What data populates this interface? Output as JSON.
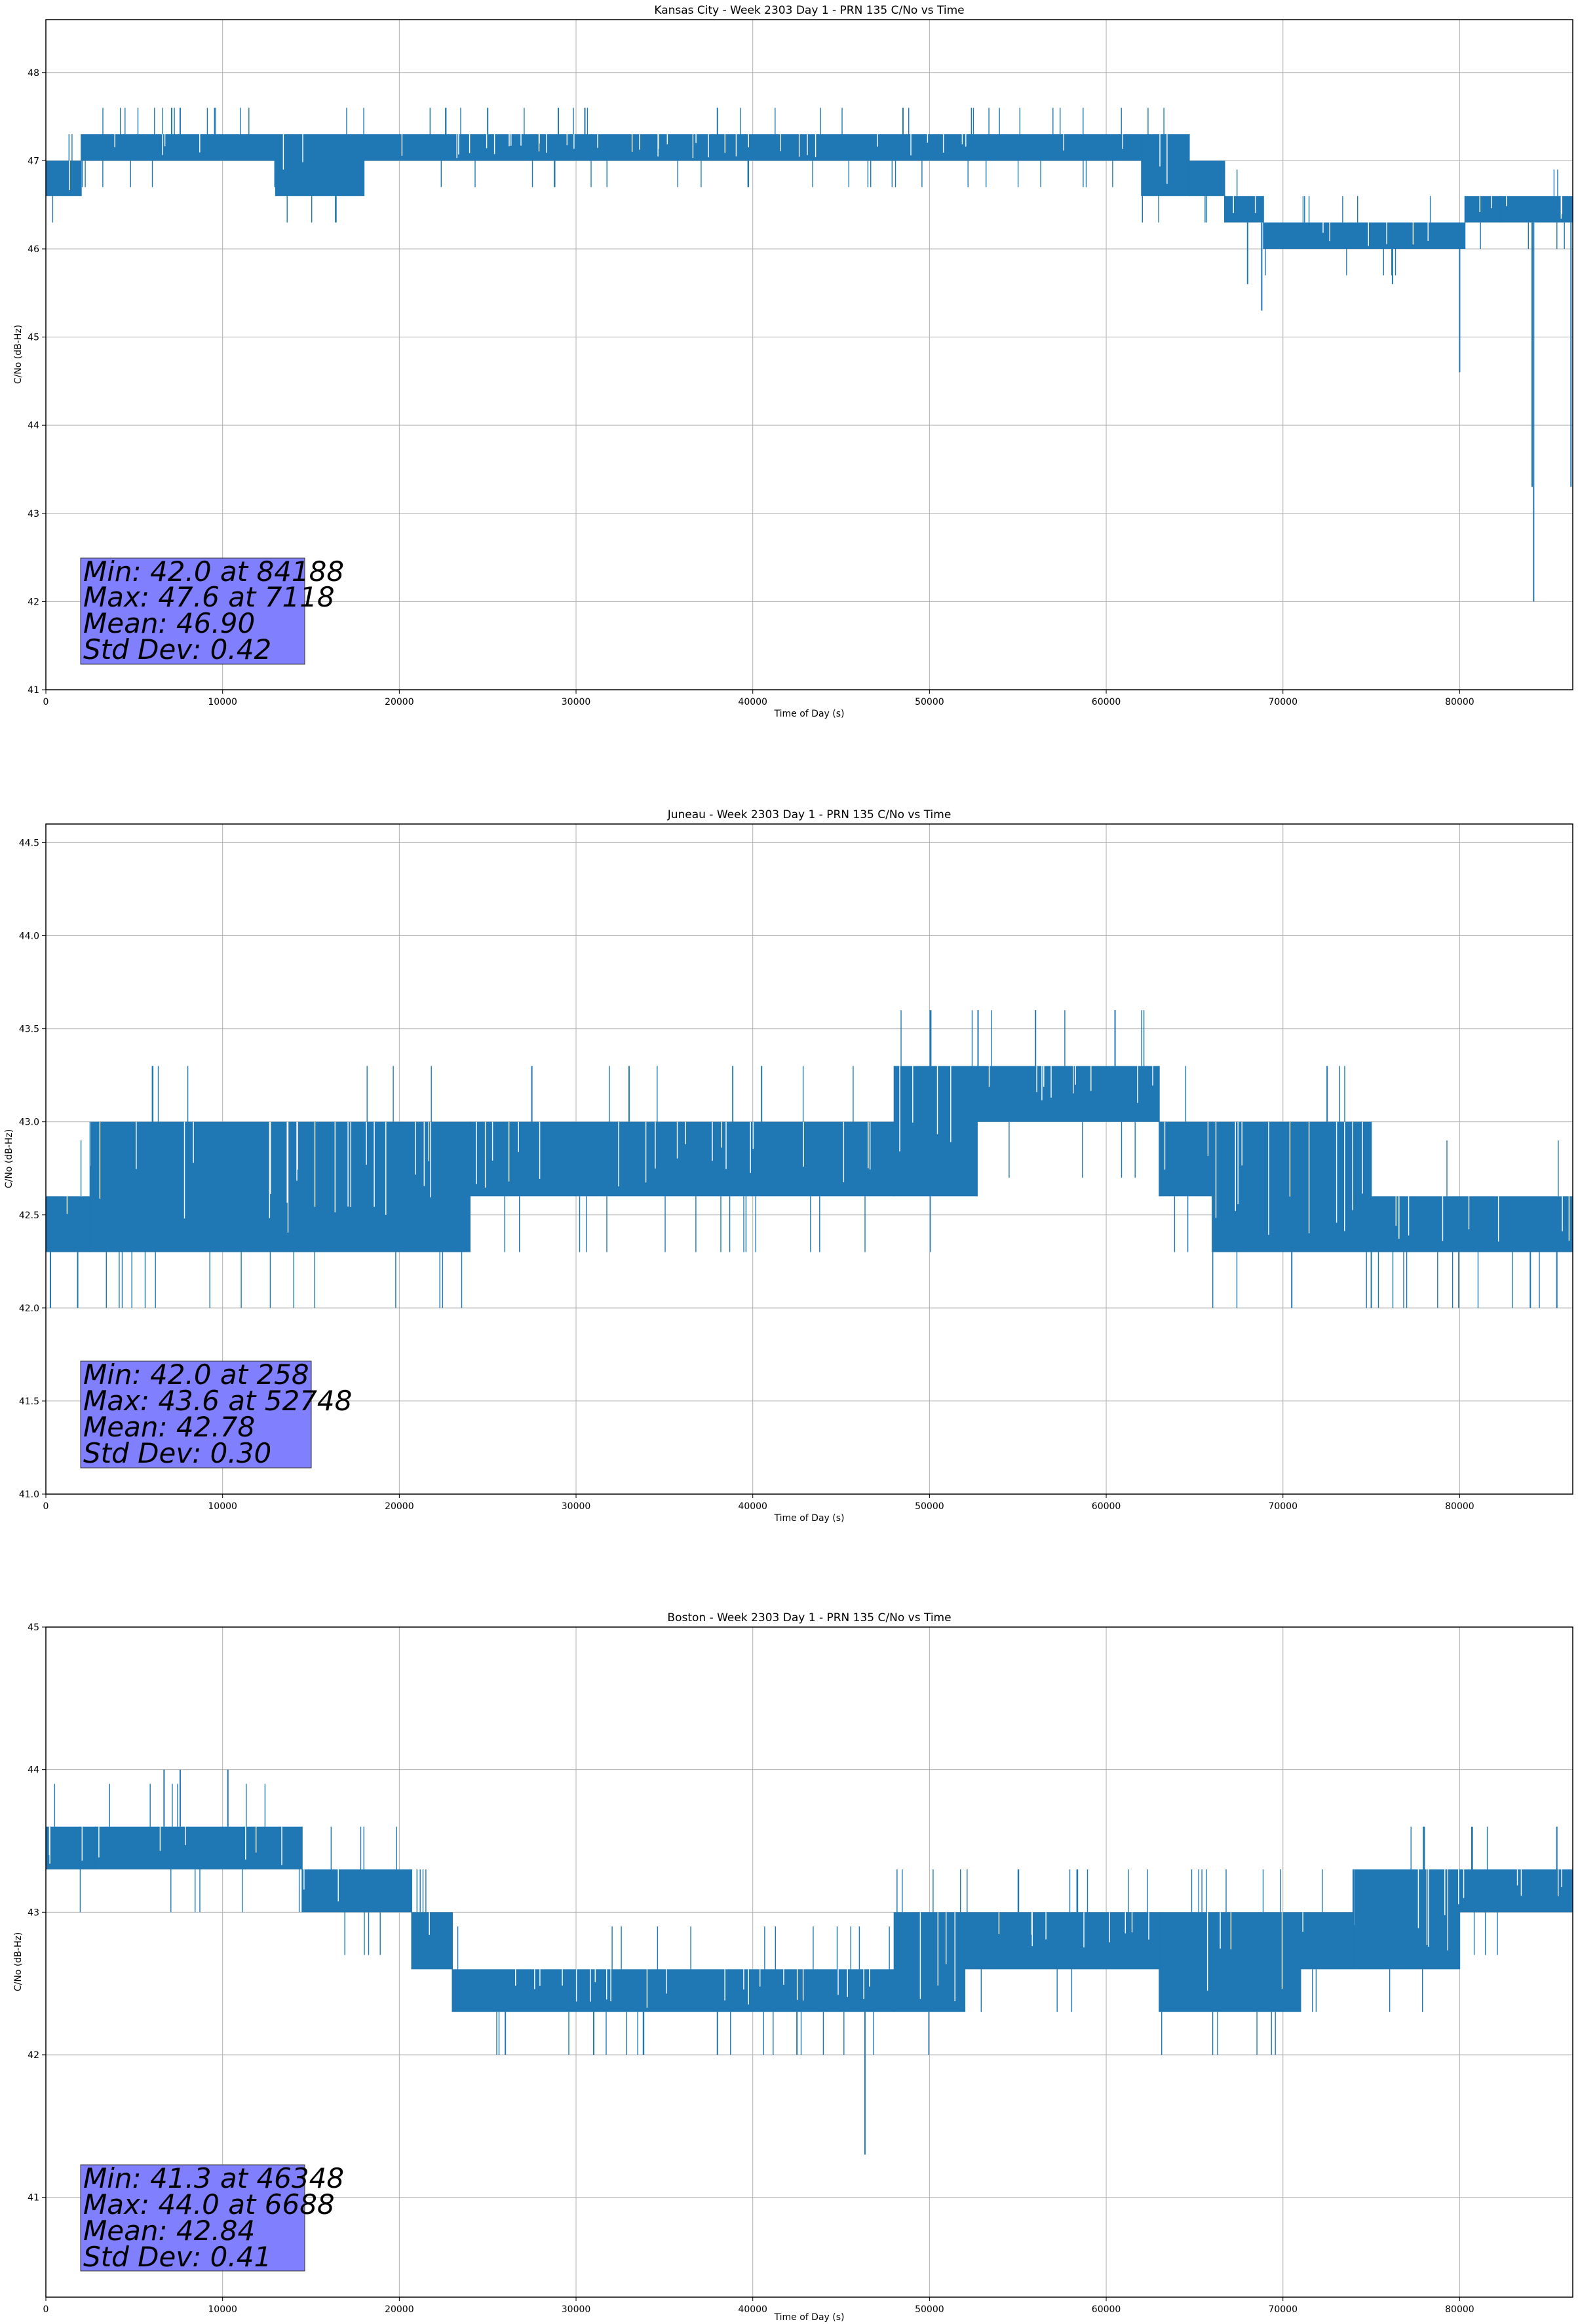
{
  "chart_data": [
    {
      "type": "line",
      "title": "Kansas City - Week 2303 Day 1 - PRN 135 C/No vs Time",
      "xlabel": "Time of Day (s)",
      "ylabel": "C/No (dB-Hz)",
      "xlim": [
        0,
        86400
      ],
      "ylim": [
        41,
        48.6
      ],
      "xticks": [
        0,
        10000,
        20000,
        30000,
        40000,
        50000,
        60000,
        70000,
        80000
      ],
      "xtick_labels": [
        "0",
        "10000",
        "20000",
        "30000",
        "40000",
        "50000",
        "60000",
        "70000",
        "80000"
      ],
      "yticks": [
        41,
        42,
        43,
        44,
        45,
        46,
        47,
        48
      ],
      "ytick_labels": [
        "41",
        "42",
        "43",
        "44",
        "45",
        "46",
        "47",
        "48"
      ],
      "grid": true,
      "color": "#1f77b4",
      "bands": [
        {
          "x": [
            0,
            2000
          ],
          "low": 46.6,
          "high": 47.0
        },
        {
          "x": [
            2000,
            13000
          ],
          "low": 47.0,
          "high": 47.3
        },
        {
          "x": [
            13000,
            18000
          ],
          "low": 46.6,
          "high": 47.3
        },
        {
          "x": [
            18000,
            62000
          ],
          "low": 47.0,
          "high": 47.3
        },
        {
          "x": [
            62000,
            64700
          ],
          "low": 46.6,
          "high": 47.3
        },
        {
          "x": [
            64700,
            66700
          ],
          "low": 46.6,
          "high": 47.0
        },
        {
          "x": [
            66700,
            68900
          ],
          "low": 46.3,
          "high": 46.6
        },
        {
          "x": [
            68900,
            80300
          ],
          "low": 46.0,
          "high": 46.3
        },
        {
          "x": [
            80300,
            82300
          ],
          "low": 46.3,
          "high": 46.6
        },
        {
          "x": [
            82300,
            86400
          ],
          "low": 46.3,
          "high": 46.6
        }
      ],
      "spikes": [
        {
          "x": 7118,
          "value": 47.6
        },
        {
          "x": 7600,
          "value": 47.6
        },
        {
          "x": 25000,
          "value": 47.6
        },
        {
          "x": 29000,
          "value": 47.6
        },
        {
          "x": 30500,
          "value": 47.6
        },
        {
          "x": 38000,
          "value": 47.6
        },
        {
          "x": 48500,
          "value": 47.6
        },
        {
          "x": 68000,
          "value": 45.6
        },
        {
          "x": 68800,
          "value": 45.3
        },
        {
          "x": 76200,
          "value": 45.6
        },
        {
          "x": 80000,
          "value": 44.6
        },
        {
          "x": 84100,
          "value": 43.3
        },
        {
          "x": 84188,
          "value": 42.0
        },
        {
          "x": 86300,
          "value": 43.3
        }
      ],
      "stats": {
        "min": "Min: 42.0 at 84188",
        "max": "Max: 47.6 at 7118",
        "mean": "Mean: 46.90",
        "std": "Std Dev: 0.42"
      }
    },
    {
      "type": "line",
      "title": "Juneau - Week 2303 Day 1 - PRN 135 C/No vs Time",
      "xlabel": "Time of Day (s)",
      "ylabel": "C/No (dB-Hz)",
      "xlim": [
        0,
        86400
      ],
      "ylim": [
        41.0,
        44.6
      ],
      "xticks": [
        0,
        10000,
        20000,
        30000,
        40000,
        50000,
        60000,
        70000,
        80000
      ],
      "xtick_labels": [
        "0",
        "10000",
        "20000",
        "30000",
        "40000",
        "50000",
        "60000",
        "70000",
        "80000"
      ],
      "yticks": [
        41.0,
        41.5,
        42.0,
        42.5,
        43.0,
        43.5,
        44.0,
        44.5
      ],
      "ytick_labels": [
        "41.0",
        "41.5",
        "42.0",
        "42.5",
        "43.0",
        "43.5",
        "44.0",
        "44.5"
      ],
      "grid": true,
      "color": "#1f77b4",
      "bands": [
        {
          "x": [
            0,
            2500
          ],
          "low": 42.3,
          "high": 42.6
        },
        {
          "x": [
            2500,
            24000
          ],
          "low": 42.3,
          "high": 43.0
        },
        {
          "x": [
            24000,
            48000
          ],
          "low": 42.6,
          "high": 43.0
        },
        {
          "x": [
            48000,
            52700
          ],
          "low": 42.6,
          "high": 43.3
        },
        {
          "x": [
            52700,
            63000
          ],
          "low": 43.0,
          "high": 43.3
        },
        {
          "x": [
            63000,
            66000
          ],
          "low": 42.6,
          "high": 43.0
        },
        {
          "x": [
            66000,
            75000
          ],
          "low": 42.3,
          "high": 43.0
        },
        {
          "x": [
            75000,
            86400
          ],
          "low": 42.3,
          "high": 42.6
        }
      ],
      "spikes": [
        {
          "x": 258,
          "value": 42.0
        },
        {
          "x": 1800,
          "value": 42.0
        },
        {
          "x": 27500,
          "value": 43.3
        },
        {
          "x": 33000,
          "value": 43.3
        },
        {
          "x": 40500,
          "value": 43.3
        },
        {
          "x": 52748,
          "value": 43.6
        },
        {
          "x": 56000,
          "value": 43.6
        },
        {
          "x": 60500,
          "value": 43.6
        },
        {
          "x": 70500,
          "value": 42.0
        },
        {
          "x": 72500,
          "value": 43.3
        },
        {
          "x": 75000,
          "value": 42.0
        },
        {
          "x": 84000,
          "value": 42.0
        },
        {
          "x": 85500,
          "value": 42.0
        }
      ],
      "stats": {
        "min": "Min: 42.0 at 258",
        "max": "Max: 43.6 at 52748",
        "mean": "Mean: 42.78",
        "std": "Std Dev: 0.30"
      }
    },
    {
      "type": "line",
      "title": "Boston - Week 2303 Day 1 - PRN 135 C/No vs Time",
      "xlabel": "Time of Day (s)",
      "ylabel": "C/No (dB-Hz)",
      "xlim": [
        0,
        86400
      ],
      "ylim": [
        40.3,
        45.0
      ],
      "xticks": [
        0,
        10000,
        20000,
        30000,
        40000,
        50000,
        60000,
        70000,
        80000
      ],
      "xtick_labels": [
        "0",
        "10000",
        "20000",
        "30000",
        "40000",
        "50000",
        "60000",
        "70000",
        "80000"
      ],
      "yticks": [
        41,
        42,
        43,
        44,
        45
      ],
      "ytick_labels": [
        "41",
        "42",
        "43",
        "44",
        "45"
      ],
      "grid": true,
      "color": "#1f77b4",
      "bands": [
        {
          "x": [
            0,
            2800
          ],
          "low": 43.3,
          "high": 43.6
        },
        {
          "x": [
            2800,
            14500
          ],
          "low": 43.3,
          "high": 43.6
        },
        {
          "x": [
            14500,
            20700
          ],
          "low": 43.0,
          "high": 43.3
        },
        {
          "x": [
            20700,
            23000
          ],
          "low": 42.6,
          "high": 43.0
        },
        {
          "x": [
            23000,
            48000
          ],
          "low": 42.3,
          "high": 42.6
        },
        {
          "x": [
            48000,
            52000
          ],
          "low": 42.3,
          "high": 43.0
        },
        {
          "x": [
            52000,
            63000
          ],
          "low": 42.6,
          "high": 43.0
        },
        {
          "x": [
            63000,
            71000
          ],
          "low": 42.3,
          "high": 43.0
        },
        {
          "x": [
            71000,
            74000
          ],
          "low": 42.6,
          "high": 43.0
        },
        {
          "x": [
            74000,
            80000
          ],
          "low": 42.6,
          "high": 43.3
        },
        {
          "x": [
            80000,
            86400
          ],
          "low": 43.0,
          "high": 43.3
        }
      ],
      "spikes": [
        {
          "x": 6688,
          "value": 44.0
        },
        {
          "x": 7600,
          "value": 44.0
        },
        {
          "x": 10300,
          "value": 44.0
        },
        {
          "x": 26000,
          "value": 42.0
        },
        {
          "x": 31000,
          "value": 42.0
        },
        {
          "x": 38000,
          "value": 42.0
        },
        {
          "x": 42500,
          "value": 42.0
        },
        {
          "x": 46348,
          "value": 41.3
        },
        {
          "x": 78000,
          "value": 43.6
        },
        {
          "x": 85500,
          "value": 43.6
        }
      ],
      "stats": {
        "min": "Min: 41.3 at 46348",
        "max": "Max: 44.0 at 6688",
        "mean": "Mean: 42.84",
        "std": "Std Dev: 0.41"
      }
    }
  ]
}
